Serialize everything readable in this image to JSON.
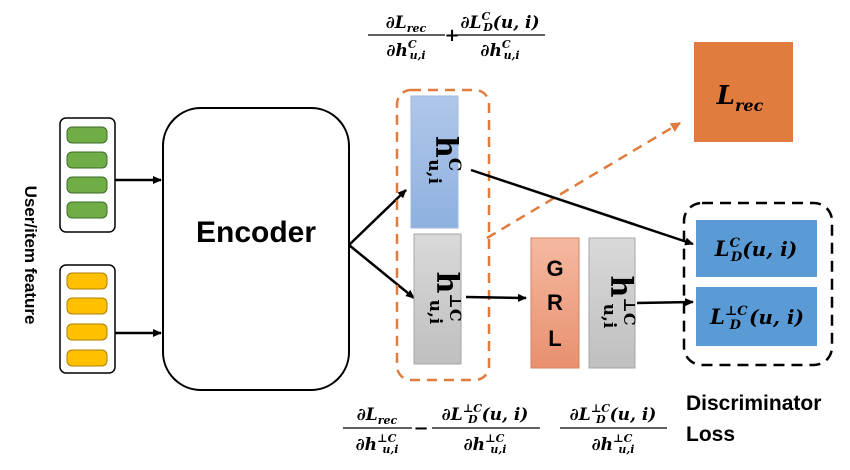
{
  "side_label": "User/item  feature",
  "encoder_label": "Encoder",
  "grl_letters": [
    "G",
    "R",
    "L"
  ],
  "lrec": {
    "base": "L",
    "sub": "rec"
  },
  "h_c": {
    "base": "h",
    "sub": "u,i",
    "sup": "C"
  },
  "h_perp": {
    "base": "h",
    "sub": "u,i",
    "sup": "⊥C"
  },
  "discriminator": {
    "row1": {
      "base": "L",
      "sub": "D",
      "sup": "C",
      "args": "(u, i)"
    },
    "row2": {
      "base": "L",
      "sub": "D",
      "sup": "⊥C",
      "args": "(u, i)"
    },
    "caption_line1": "Discriminator",
    "caption_line2": "Loss"
  },
  "gradients": {
    "top": {
      "frac1": {
        "num": {
          "base": "∂L",
          "sub": "rec"
        },
        "den": {
          "base": "∂h",
          "sub": "u,i",
          "sup": "C"
        }
      },
      "op": "+",
      "frac2": {
        "num": {
          "base": "∂L",
          "sub": "D",
          "sup": "C",
          "args": "(u, i)"
        },
        "den": {
          "base": "∂h",
          "sub": "u,i",
          "sup": "C"
        }
      }
    },
    "bottom_left": {
      "frac1": {
        "num": {
          "base": "∂L",
          "sub": "rec"
        },
        "den": {
          "base": "∂h",
          "sub": "u,i",
          "sup": "⊥C"
        }
      },
      "op": "−",
      "frac2": {
        "num": {
          "base": "∂L",
          "sub": "D",
          "sup": "⊥C",
          "args": "(u, i)"
        },
        "den": {
          "base": "∂h",
          "sub": "u,i",
          "sup": "⊥C"
        }
      }
    },
    "bottom_right": {
      "frac1": {
        "num": {
          "base": "∂L",
          "sub": "D",
          "sup": "⊥C",
          "args": "(u, i)"
        },
        "den": {
          "base": "∂h",
          "sub": "u,i",
          "sup": "⊥C"
        }
      }
    }
  },
  "colors": {
    "green": "#70AD47",
    "yellow": "#FFC000",
    "blue_top": "#AFC7EA",
    "blue_bottom": "#8FB1DF",
    "gray_top": "#D9D9D9",
    "gray_bottom": "#BFBFBF",
    "grl_top": "#F5B9A0",
    "grl_bottom": "#E8906F",
    "orange": "#E07C3E",
    "lrec_box": "#E07C3E",
    "disc_box": "#5B9BD5"
  }
}
